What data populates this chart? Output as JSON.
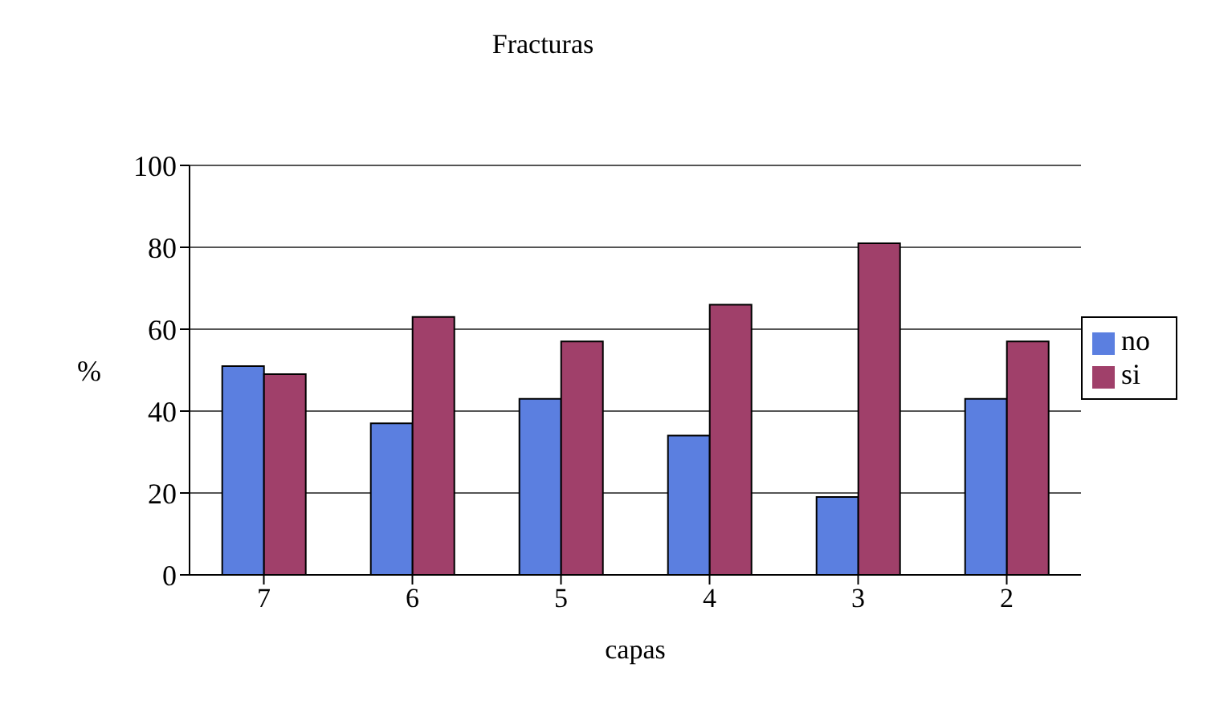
{
  "chart_data": {
    "type": "bar",
    "title": "Fracturas",
    "xlabel": "capas",
    "ylabel": "%",
    "categories": [
      "7",
      "6",
      "5",
      "4",
      "3",
      "2"
    ],
    "series": [
      {
        "name": "no",
        "color": "#5b7fe0",
        "values": [
          51,
          37,
          43,
          34,
          19,
          43
        ]
      },
      {
        "name": "si",
        "color": "#a0406a",
        "values": [
          49,
          63,
          57,
          66,
          81,
          57
        ]
      }
    ],
    "ylim": [
      0,
      100
    ],
    "yticks": [
      0,
      20,
      40,
      60,
      80,
      100
    ],
    "grid": "y",
    "legend": "right"
  }
}
